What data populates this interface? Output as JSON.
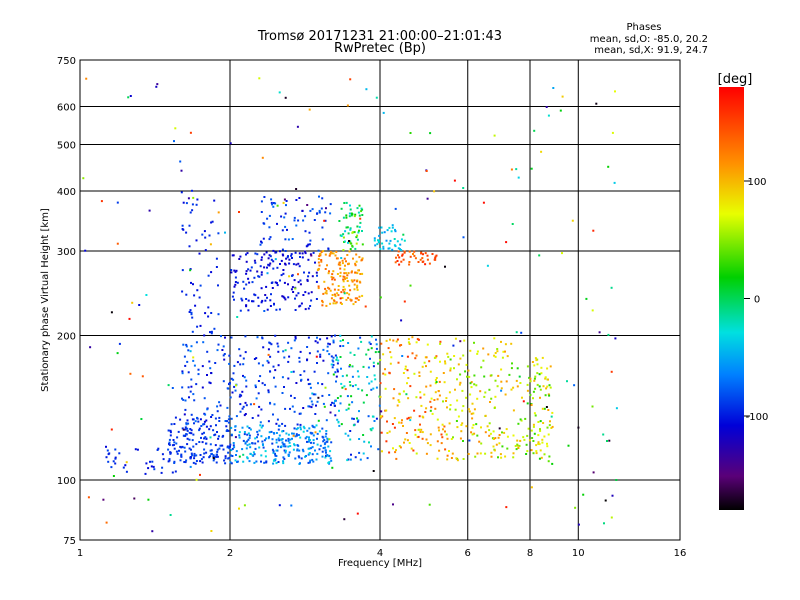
{
  "chart_data": {
    "type": "scatter",
    "title": "Tromsø 20171231 21:00:00–21:01:43",
    "subtitle": "RwPretec (Bp)",
    "xlabel": "Frequency [MHz]",
    "ylabel": "Stationary phase Virtual Height [km]",
    "x_scale": "log",
    "y_scale": "log",
    "xlim": [
      1,
      16
    ],
    "ylim": [
      75,
      750
    ],
    "x_ticks": [
      1,
      2,
      4,
      6,
      8,
      10,
      16
    ],
    "y_ticks": [
      75,
      100,
      200,
      300,
      400,
      500,
      600,
      750
    ],
    "grid": true,
    "stats": {
      "heading": "Phases",
      "line_o": "mean, sd,O:  -85.0, 20.2",
      "line_x": "mean, sd,X:   91.9, 24.7"
    },
    "colorbar": {
      "label": "[deg]",
      "range": [
        -180,
        180
      ],
      "ticks": [
        100,
        0,
        -100
      ],
      "colormap": "rainbow"
    },
    "clusters": [
      {
        "f": [
          1.1,
          1.6
        ],
        "h": [
          103,
          118
        ],
        "phase": [
          -110,
          -85
        ],
        "n": 40
      },
      {
        "f": [
          1.5,
          2.0
        ],
        "h": [
          108,
          135
        ],
        "phase": [
          -105,
          -80
        ],
        "n": 160
      },
      {
        "f": [
          2.0,
          3.2
        ],
        "h": [
          108,
          130
        ],
        "phase": [
          -95,
          -30
        ],
        "n": 260
      },
      {
        "f": [
          1.6,
          3.3
        ],
        "h": [
          130,
          200
        ],
        "phase": [
          -115,
          -70
        ],
        "n": 260
      },
      {
        "f": [
          1.6,
          1.9
        ],
        "h": [
          200,
          405
        ],
        "phase": [
          -110,
          -85
        ],
        "n": 60
      },
      {
        "f": [
          2.0,
          3.0
        ],
        "h": [
          225,
          300
        ],
        "phase": [
          -120,
          -90
        ],
        "n": 170
      },
      {
        "f": [
          2.3,
          3.2
        ],
        "h": [
          300,
          390
        ],
        "phase": [
          -110,
          -70
        ],
        "n": 70
      },
      {
        "f": [
          3.0,
          3.7
        ],
        "h": [
          230,
          300
        ],
        "phase": [
          90,
          140
        ],
        "n": 150
      },
      {
        "f": [
          3.3,
          3.7
        ],
        "h": [
          300,
          380
        ],
        "phase": [
          -40,
          60
        ],
        "n": 60
      },
      {
        "f": [
          3.9,
          4.5
        ],
        "h": [
          300,
          340
        ],
        "phase": [
          -60,
          -20
        ],
        "n": 40
      },
      {
        "f": [
          4.3,
          5.2
        ],
        "h": [
          280,
          300
        ],
        "phase": [
          130,
          170
        ],
        "n": 40
      },
      {
        "f": [
          3.2,
          4.0
        ],
        "h": [
          110,
          200
        ],
        "phase": [
          -105,
          20
        ],
        "n": 120
      },
      {
        "f": [
          4.0,
          5.5
        ],
        "h": [
          110,
          200
        ],
        "phase": [
          60,
          160
        ],
        "n": 170
      },
      {
        "f": [
          5.5,
          7.5
        ],
        "h": [
          110,
          200
        ],
        "phase": [
          30,
          120
        ],
        "n": 160
      },
      {
        "f": [
          7.5,
          8.9
        ],
        "h": [
          110,
          180
        ],
        "phase": [
          20,
          110
        ],
        "n": 110
      },
      {
        "f": [
          1.0,
          12.0
        ],
        "h": [
          78,
          700
        ],
        "phase": [
          -180,
          180
        ],
        "n": 220
      }
    ]
  }
}
